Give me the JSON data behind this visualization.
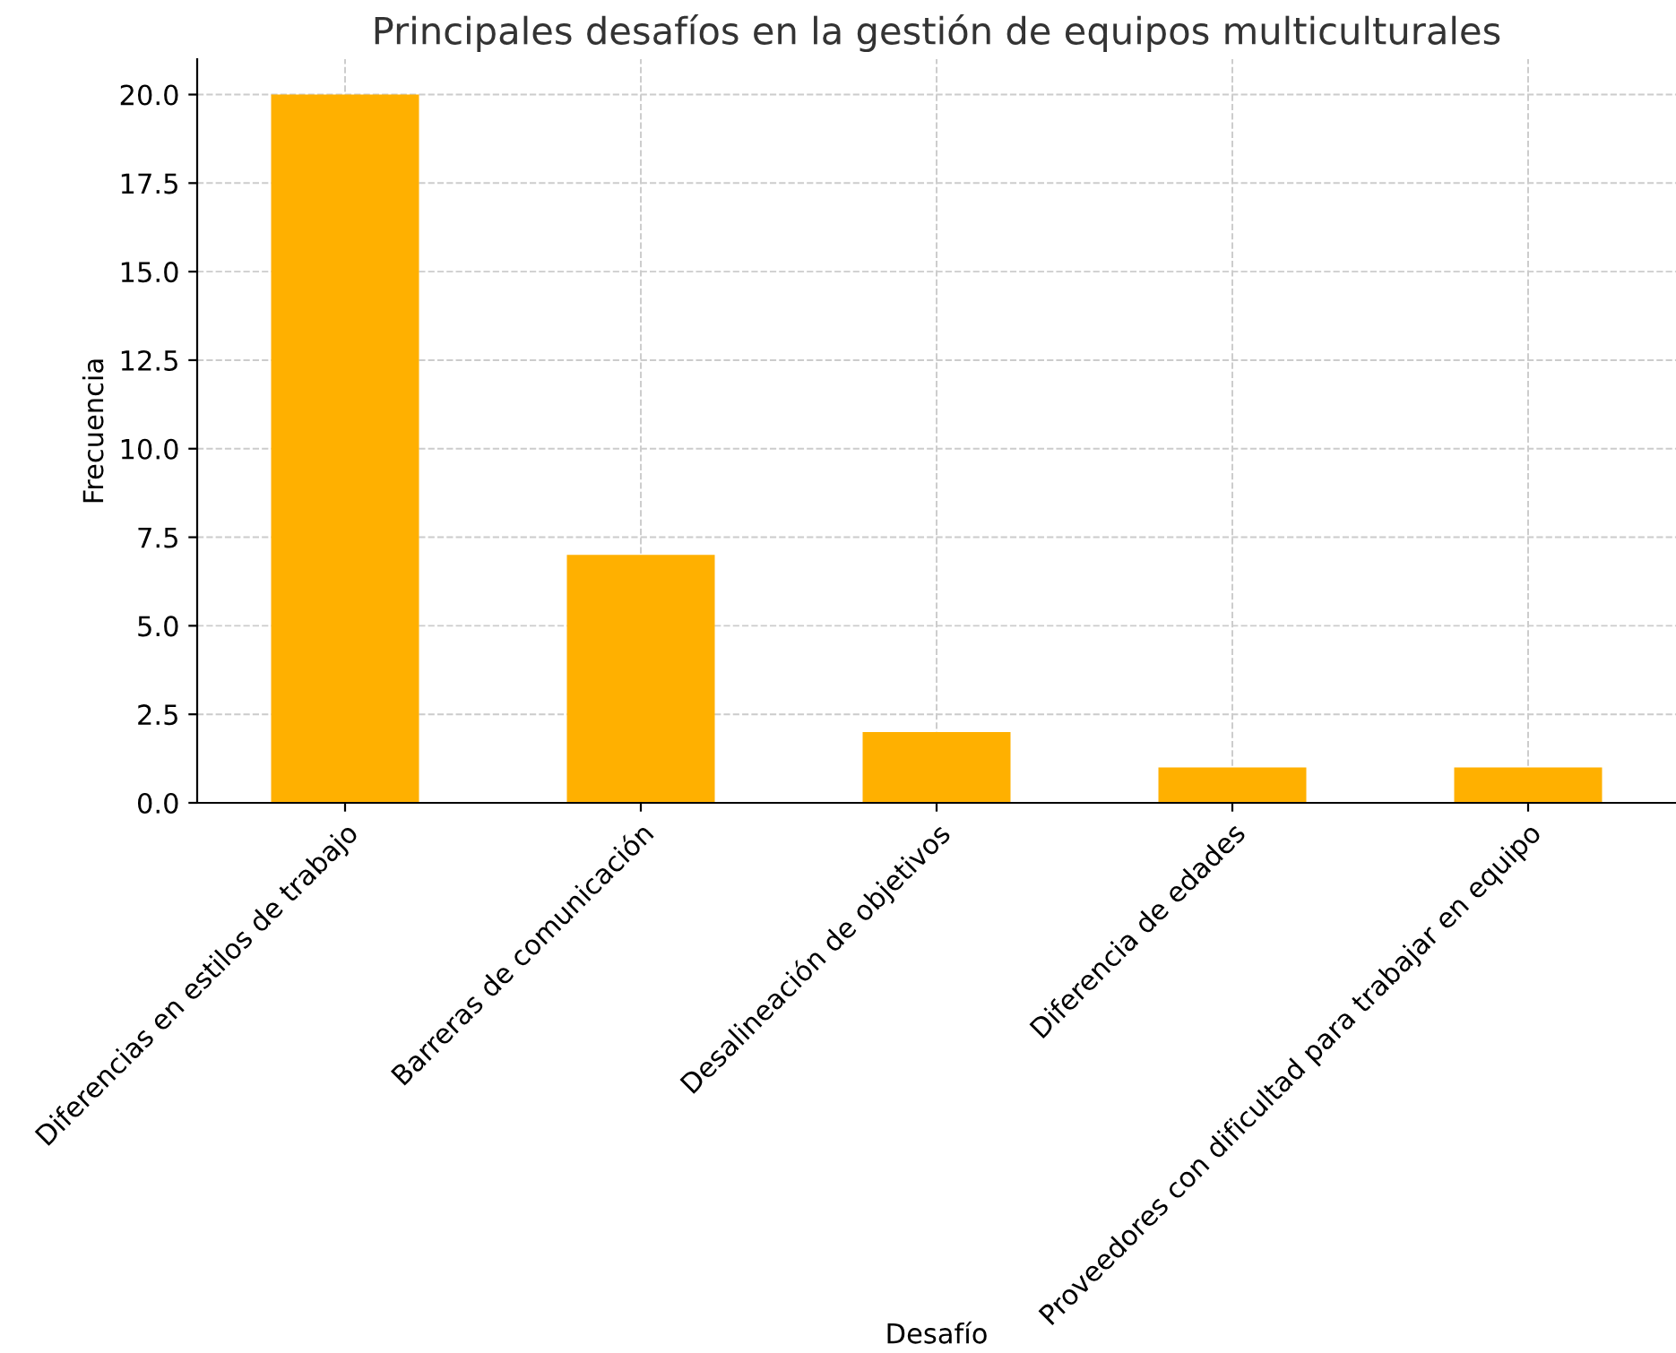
{
  "chart_data": {
    "type": "bar",
    "title": "Principales desafíos en la gestión de equipos multiculturales",
    "xlabel": "Desafío",
    "ylabel": "Frecuencia",
    "categories": [
      "Diferencias en estilos de trabajo",
      "Barreras de comunicación",
      "Desalineación de objetivos",
      "Diferencia de edades",
      "Proveedores con dificultad para trabajar en equipo"
    ],
    "values": [
      20,
      7,
      2,
      1,
      1
    ],
    "color": "#ffb000",
    "ylim": [
      0,
      21
    ],
    "yticks": [
      {
        "value": 0,
        "label": "0.0"
      },
      {
        "value": 2.5,
        "label": "2.5"
      },
      {
        "value": 5,
        "label": "5.0"
      },
      {
        "value": 7.5,
        "label": "7.5"
      },
      {
        "value": 10,
        "label": "10.0"
      },
      {
        "value": 12.5,
        "label": "12.5"
      },
      {
        "value": 15,
        "label": "15.0"
      },
      {
        "value": 17.5,
        "label": "17.5"
      },
      {
        "value": 20,
        "label": "20.0"
      }
    ],
    "grid": true
  }
}
